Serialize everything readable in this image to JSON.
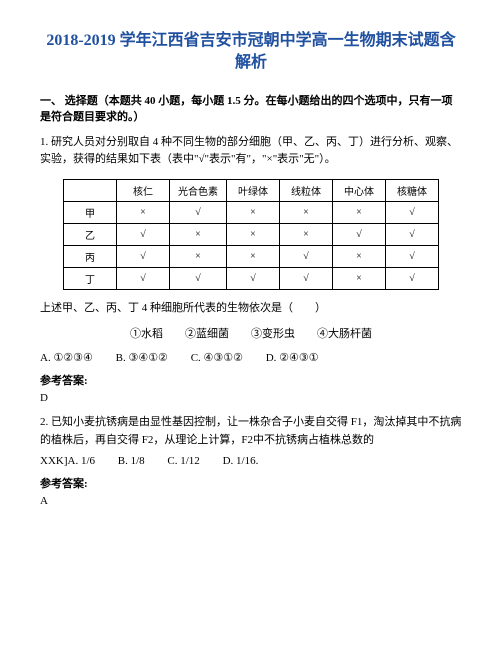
{
  "title": "2018-2019 学年江西省吉安市冠朝中学高一生物期末试题含解析",
  "section1": {
    "header": "一、 选择题（本题共 40 小题，每小题 1.5 分。在每小题给出的四个选项中，只有一项是符合题目要求的。）"
  },
  "q1": {
    "text": "1. 研究人员对分别取自 4 种不同生物的部分细胞（甲、乙、丙、丁）进行分析、观察、实验，获得的结果如下表（表中\"√\"表示\"有\"，\"×\"表示\"无\"）。",
    "table": {
      "headers": [
        "",
        "核仁",
        "光合色素",
        "叶绿体",
        "线粒体",
        "中心体",
        "核糖体"
      ],
      "rows": [
        [
          "甲",
          "×",
          "√",
          "×",
          "×",
          "×",
          "√"
        ],
        [
          "乙",
          "√",
          "×",
          "×",
          "×",
          "√",
          "√"
        ],
        [
          "丙",
          "√",
          "×",
          "×",
          "√",
          "×",
          "√"
        ],
        [
          "丁",
          "√",
          "√",
          "√",
          "√",
          "×",
          "√"
        ]
      ]
    },
    "subtext": "上述甲、乙、丙、丁 4 种细胞所代表的生物依次是（　　）",
    "choices_line": "①水稻　　②蓝细菌　　③变形虫　　④大肠杆菌",
    "optA": "A. ①②③④",
    "optB": "B. ③④①②",
    "optC": "C. ④③①②",
    "optD": "D. ②④③①",
    "answer_label": "参考答案:",
    "answer": "D"
  },
  "q2": {
    "text": "2. 已知小麦抗锈病是由显性基因控制，让一株杂合子小麦自交得 F1，淘汰掉其中不抗病的植株后，再自交得 F2，从理论上计算，F2中不抗锈病占植株总数的",
    "optA": "XXK]A. 1/6",
    "optB": "B. 1/8",
    "optC": "C. 1/12",
    "optD": "D. 1/16.",
    "answer_label": "参考答案:",
    "answer": "A"
  }
}
